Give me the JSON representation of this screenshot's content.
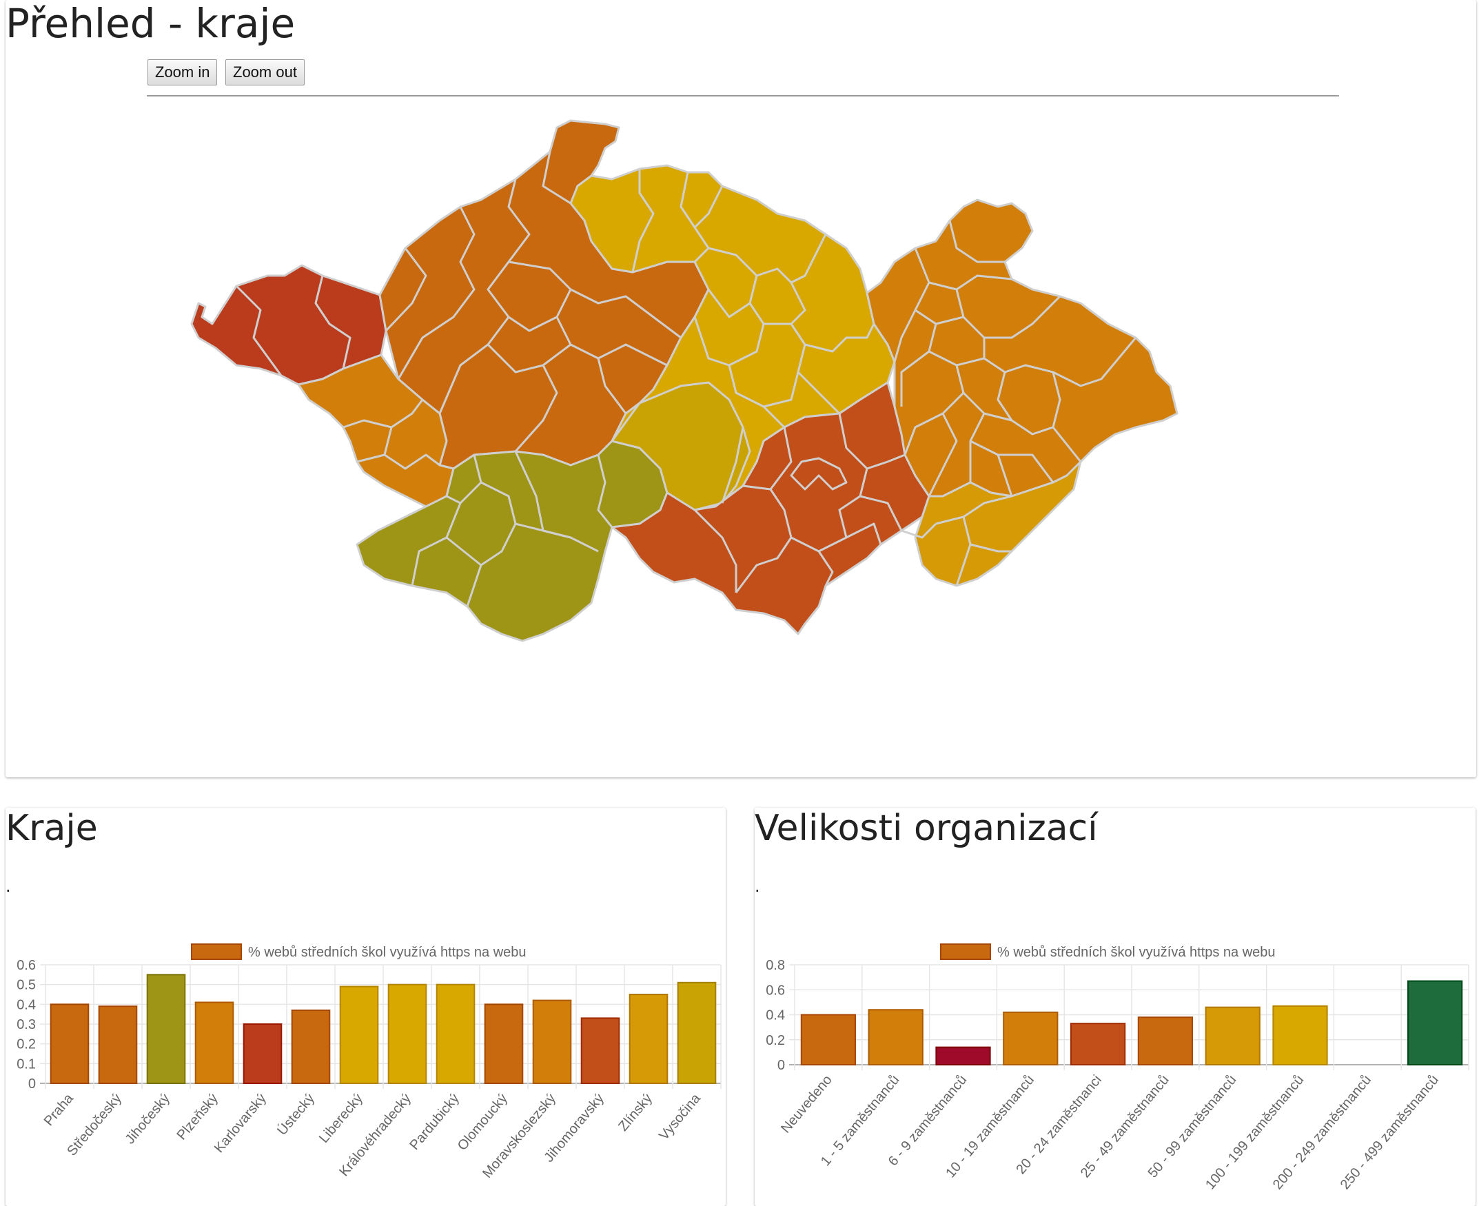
{
  "map_panel": {
    "title": "Přehled - kraje",
    "zoom_in_label": "Zoom in",
    "zoom_out_label": "Zoom out"
  },
  "kraje_panel": {
    "title": "Kraje",
    "subtitle": "."
  },
  "velikosti_panel": {
    "title": "Velikosti organizací",
    "subtitle": "."
  },
  "colors": {
    "dark_orange": "#c9690f",
    "orange": "#d17e0b",
    "amber": "#d59a05",
    "gold": "#d8a800",
    "mustard": "#c9a203",
    "olive": "#9e9415",
    "red_orange": "#c24e19",
    "red": "#bb3b1d",
    "crimson": "#a00a2a",
    "green": "#1e6b3b",
    "border": "#cfcfcf"
  },
  "chart_data": [
    {
      "type": "bar",
      "title": "Kraje",
      "legend": "% webů středních škol využívá https na webu",
      "legend_placement": "top",
      "grid": true,
      "ylim": [
        0,
        0.6
      ],
      "yticks": [
        "0",
        "0.1",
        "0.2",
        "0.3",
        "0.4",
        "0.5",
        "0.6"
      ],
      "categories": [
        "Praha",
        "Středočeský",
        "Jihočeský",
        "Plzeňský",
        "Karlovarský",
        "Ústecký",
        "Liberecký",
        "Královéhradecký",
        "Pardubický",
        "Olomoucký",
        "Moravskoslezský",
        "Jihomoravský",
        "Zlínský",
        "Vysočina"
      ],
      "values": [
        0.4,
        0.39,
        0.55,
        0.41,
        0.3,
        0.37,
        0.49,
        0.5,
        0.5,
        0.4,
        0.42,
        0.33,
        0.45,
        0.51
      ],
      "bar_colors": [
        "#c9690f",
        "#c9690f",
        "#9e9415",
        "#d17e0b",
        "#bb3b1d",
        "#c9690f",
        "#d8a800",
        "#d8a800",
        "#d8a800",
        "#c9690f",
        "#d17e0b",
        "#c24e19",
        "#d59a05",
        "#c9a203"
      ]
    },
    {
      "type": "bar",
      "title": "Velikosti organizací",
      "legend": "% webů středních škol využívá https na webu",
      "legend_placement": "top",
      "grid": true,
      "ylim": [
        0,
        0.8
      ],
      "yticks": [
        "0",
        "0.2",
        "0.4",
        "0.6",
        "0.8"
      ],
      "categories": [
        "Neuvedeno",
        "1 - 5 zaměstnanců",
        "6 - 9 zaměstnanců",
        "10 - 19 zaměstnanců",
        "20 - 24 zaměstnanci",
        "25 - 49 zaměstnanců",
        "50 - 99 zaměstnanců",
        "100 - 199 zaměstnanců",
        "200 - 249 zaměstnanců",
        "250 - 499 zaměstnanců"
      ],
      "values": [
        0.4,
        0.44,
        0.14,
        0.42,
        0.33,
        0.38,
        0.46,
        0.47,
        0,
        0.67
      ],
      "bar_colors": [
        "#c9690f",
        "#d17e0b",
        "#a00a2a",
        "#d17e0b",
        "#c24e19",
        "#c9690f",
        "#d59a05",
        "#d8a800",
        "#cccccc",
        "#1e6b3b"
      ]
    }
  ]
}
